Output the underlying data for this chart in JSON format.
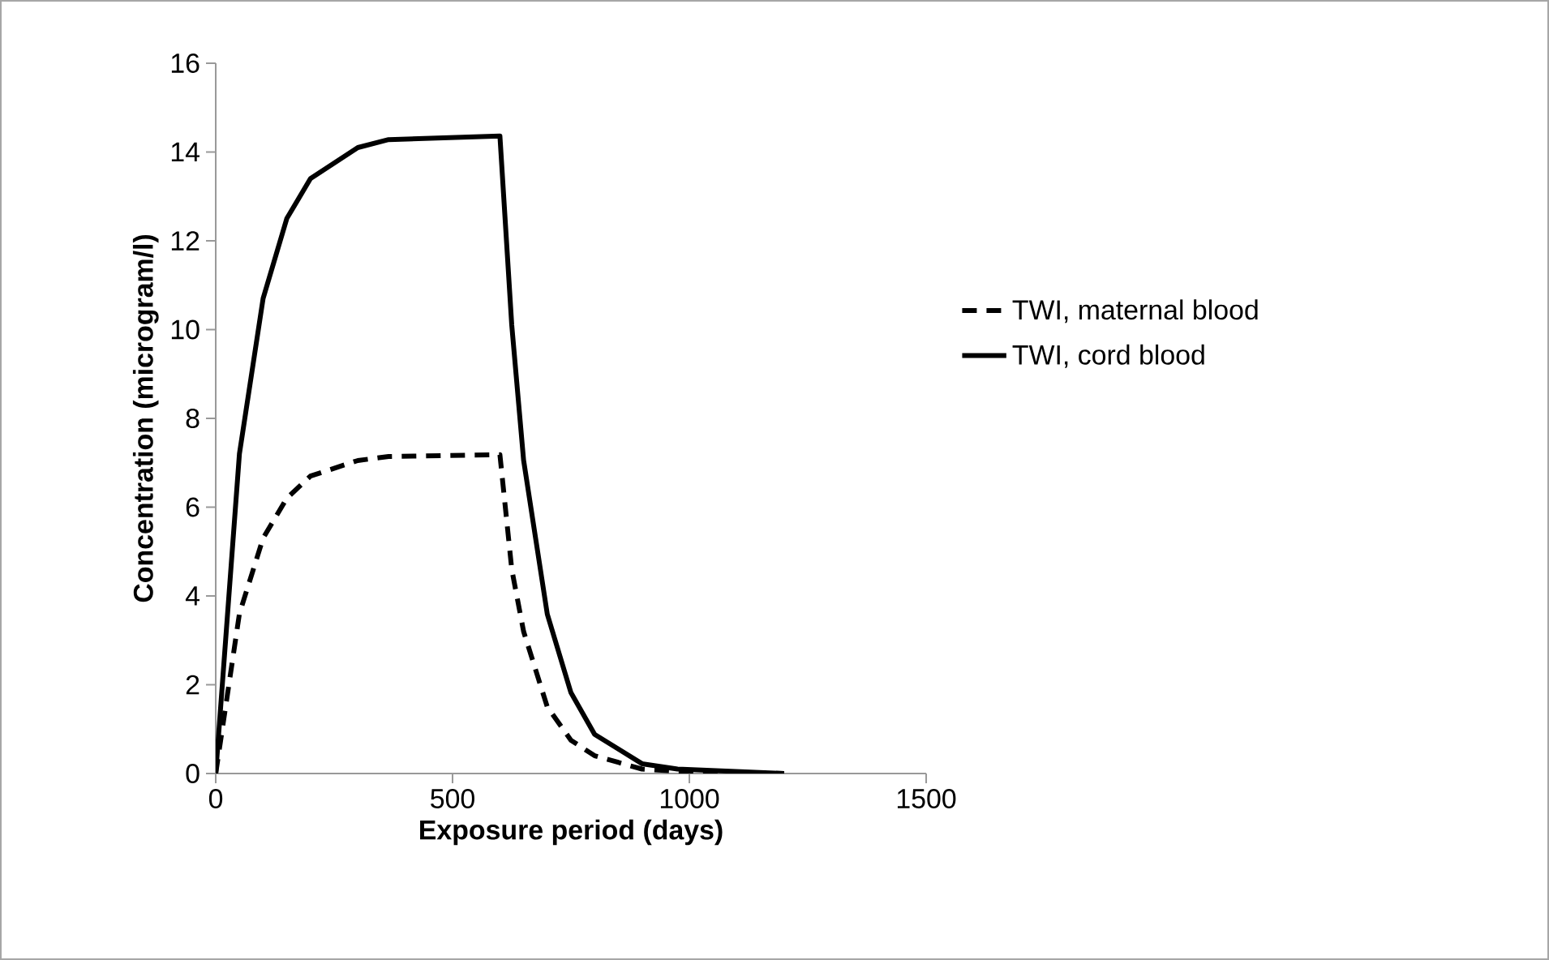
{
  "chart_data": {
    "type": "line",
    "xlabel": "Exposure period (days)",
    "ylabel": "Concentration (microgram/l)",
    "xlim": [
      0,
      1500
    ],
    "xticks": [
      0,
      500,
      1000,
      1500
    ],
    "ylim": [
      0,
      16
    ],
    "yticks": [
      0,
      2,
      4,
      6,
      8,
      10,
      12,
      14,
      16
    ],
    "grid": false,
    "legend": "right",
    "marker": "none",
    "series": [
      {
        "name": "TWI, maternal blood",
        "color": "#000000",
        "line_style": "dashed",
        "x": [
          0,
          50,
          100,
          150,
          200,
          300,
          365,
          600,
          625,
          650,
          700,
          750,
          800,
          900,
          975,
          1200
        ],
        "values": [
          0,
          3.6,
          5.3,
          6.2,
          6.7,
          7.05,
          7.14,
          7.18,
          4.6,
          3.2,
          1.5,
          0.75,
          0.4,
          0.1,
          0.05,
          0
        ]
      },
      {
        "name": "TWI, cord blood",
        "color": "#000000",
        "line_style": "solid",
        "x": [
          0,
          50,
          100,
          150,
          200,
          300,
          365,
          600,
          625,
          650,
          700,
          750,
          800,
          900,
          975,
          1200
        ],
        "values": [
          0,
          7.2,
          10.7,
          12.5,
          13.4,
          14.1,
          14.28,
          14.36,
          10.1,
          7.06,
          3.59,
          1.82,
          0.88,
          0.22,
          0.1,
          0
        ]
      }
    ]
  }
}
